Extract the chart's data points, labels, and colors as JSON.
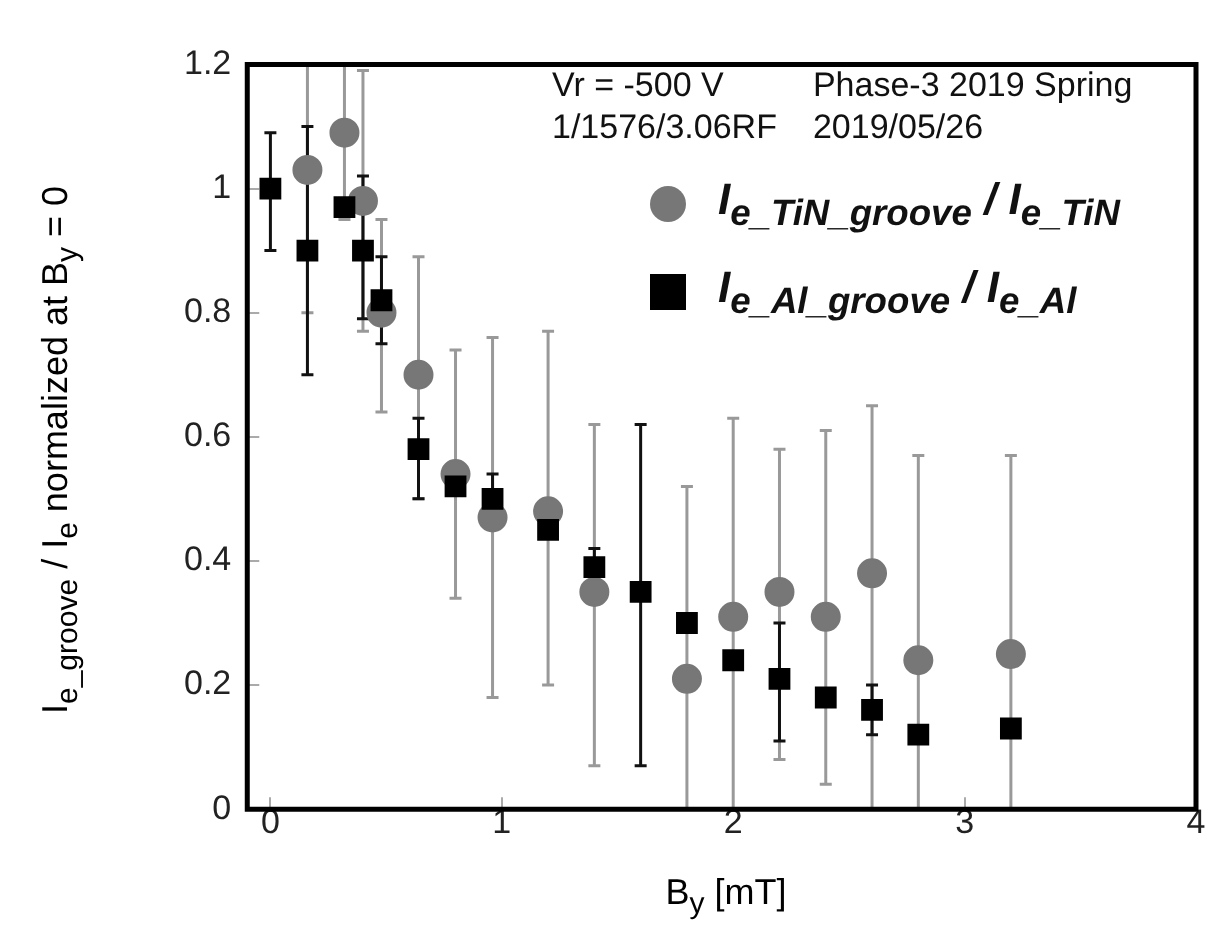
{
  "chart_data": {
    "type": "scatter",
    "xlabel": "B$_{y}$ [mT]",
    "ylabel": "I$_{e_groove}$ / I$_{e}$ normalized at B$_{y}$ = 0",
    "annotations": [
      "Vr = -500 V",
      "Phase-3 2019 Spring",
      "1/1576/3.06RF",
      "2019/05/26"
    ],
    "xlim": [
      -0.1,
      4
    ],
    "xticks": [
      0,
      1,
      2,
      3,
      4
    ],
    "ylim": [
      0,
      1.2
    ],
    "yticks": [
      0,
      {
        "value": 0.2,
        "label": "0.2"
      },
      {
        "value": 0.4,
        "label": "0.4"
      },
      {
        "value": 0.6,
        "label": "0.6"
      },
      {
        "value": 0.8,
        "label": "0.8"
      },
      1,
      {
        "value": 1.2,
        "label": "1.2"
      }
    ],
    "grid": false,
    "legend": "top right",
    "series": [
      {
        "name": "I$_{e_TiN_groove}$ / I$_{e_TiN}$",
        "color": "#777777",
        "marker": "circle",
        "x": [
          0.16,
          0.32,
          0.4,
          0.48,
          0.64,
          0.8,
          0.96,
          1.2,
          1.4,
          1.6,
          1.8,
          2.0,
          2.2,
          2.4,
          2.6,
          2.8,
          3.2
        ],
        "values": [
          1.03,
          1.09,
          0.98,
          0.8,
          0.7,
          0.54,
          0.47,
          0.48,
          0.35,
          null,
          0.21,
          0.31,
          0.35,
          0.31,
          0.38,
          0.24,
          0.25
        ],
        "errors": [
          [
            0.8,
            1.2
          ],
          [
            0.95,
            1.2
          ],
          [
            0.77,
            1.19
          ],
          [
            0.64,
            0.95
          ],
          [
            0.5,
            0.89
          ],
          [
            0.34,
            0.74
          ],
          [
            0.18,
            0.76
          ],
          [
            0.2,
            0.77
          ],
          [
            0.07,
            0.62
          ],
          null,
          [
            0,
            0.52
          ],
          [
            0,
            0.63
          ],
          [
            0.08,
            0.58
          ],
          [
            0.04,
            0.61
          ],
          [
            0,
            0.65
          ],
          [
            0,
            0.57
          ],
          [
            0,
            0.57
          ]
        ]
      },
      {
        "name": "I$_{e_Al_groove}$ / I$_{e_Al}$",
        "color": "#000000",
        "marker": "square",
        "x": [
          0,
          0.16,
          0.32,
          0.4,
          0.48,
          0.64,
          0.8,
          0.96,
          1.2,
          1.4,
          1.6,
          1.8,
          2.0,
          2.2,
          2.4,
          2.6,
          2.8,
          3.2
        ],
        "values": [
          1.0,
          0.9,
          0.97,
          0.9,
          0.82,
          0.58,
          0.52,
          0.5,
          0.45,
          0.39,
          0.35,
          0.3,
          0.24,
          0.21,
          0.18,
          0.16,
          0.12,
          0.13
        ],
        "errors": [
          [
            0.9,
            1.09
          ],
          [
            0.7,
            1.1
          ],
          null,
          [
            0.79,
            1.02
          ],
          [
            0.75,
            0.89
          ],
          [
            0.5,
            0.63
          ],
          null,
          [
            0.5,
            0.54
          ],
          null,
          [
            0.39,
            0.42
          ],
          [
            0.07,
            0.62
          ],
          null,
          null,
          [
            0.11,
            0.3
          ],
          null,
          [
            0.12,
            0.2
          ],
          null,
          null
        ]
      }
    ]
  }
}
